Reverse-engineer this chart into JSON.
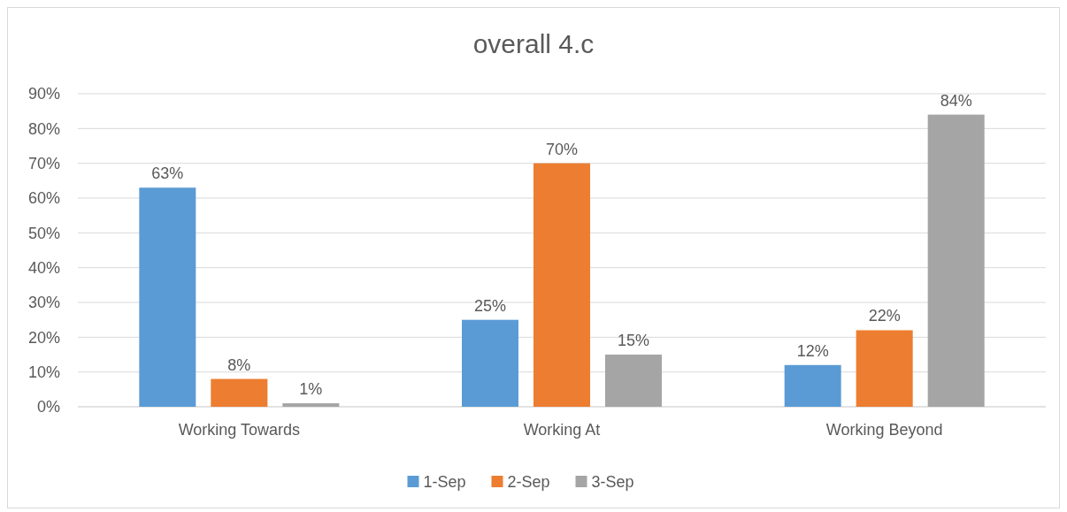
{
  "chart_data": {
    "type": "bar",
    "title": "overall 4.c",
    "categories": [
      "Working Towards",
      "Working At",
      "Working Beyond"
    ],
    "series": [
      {
        "name": "1-Sep",
        "color": "#5b9bd5",
        "values": [
          63,
          25,
          12
        ],
        "value_labels": [
          "63%",
          "25%",
          "12%"
        ]
      },
      {
        "name": "2-Sep",
        "color": "#ed7d31",
        "values": [
          8,
          70,
          22
        ],
        "value_labels": [
          "8%",
          "70%",
          "22%"
        ]
      },
      {
        "name": "3-Sep",
        "color": "#a5a5a5",
        "values": [
          1,
          15,
          84
        ],
        "value_labels": [
          "1%",
          "15%",
          "84%"
        ]
      }
    ],
    "ylim": [
      0,
      90
    ],
    "yticks": [
      {
        "value": 0,
        "label": "0%"
      },
      {
        "value": 10,
        "label": "10%"
      },
      {
        "value": 20,
        "label": "20%"
      },
      {
        "value": 30,
        "label": "30%"
      },
      {
        "value": 40,
        "label": "40%"
      },
      {
        "value": 50,
        "label": "50%"
      },
      {
        "value": 60,
        "label": "60%"
      },
      {
        "value": 70,
        "label": "70%"
      },
      {
        "value": 80,
        "label": "80%"
      },
      {
        "value": 90,
        "label": "90%"
      }
    ],
    "grid": "y",
    "legend": "bottom"
  }
}
